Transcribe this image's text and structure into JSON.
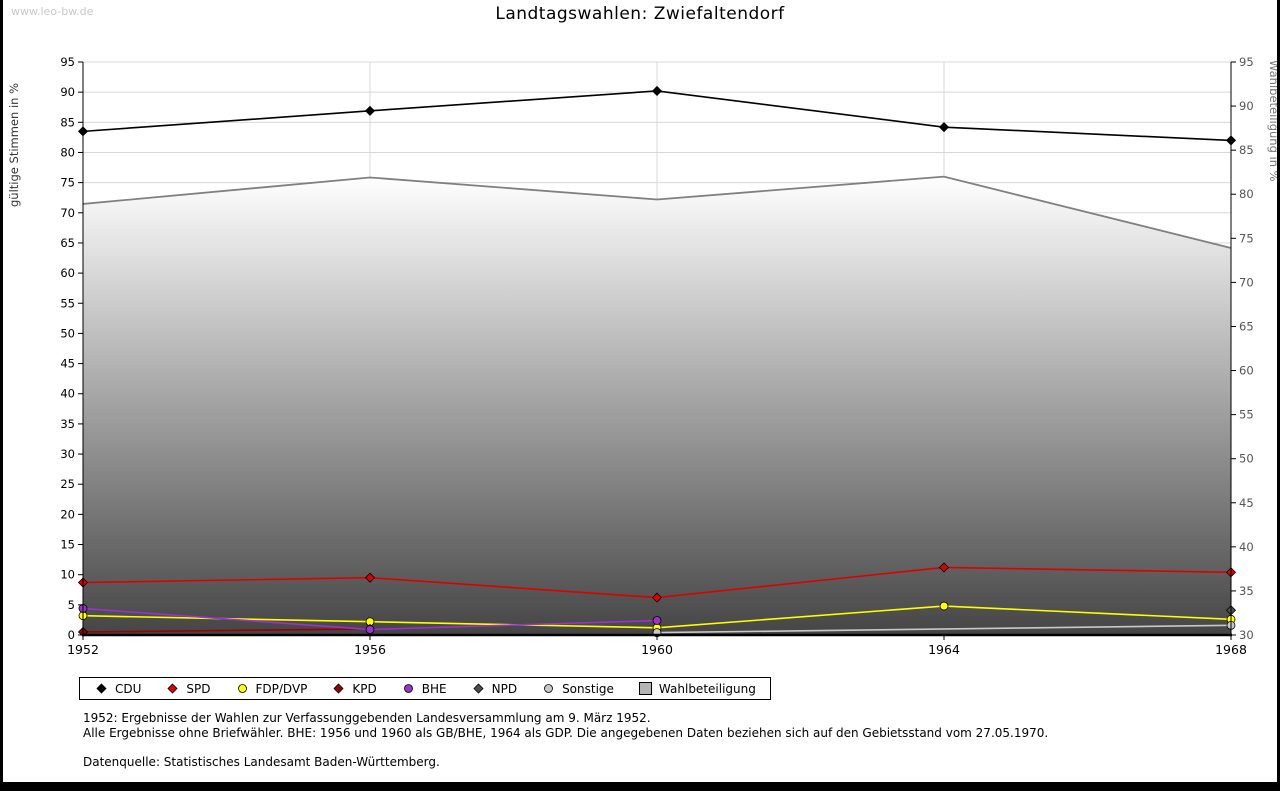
{
  "watermark": "www.leo-bw.de",
  "title": "Landtagswahlen: Zwiefaltendorf",
  "chart_data": {
    "type": "line",
    "x": [
      1952,
      1956,
      1960,
      1964,
      1968
    ],
    "left_axis": {
      "label": "gültige Stimmen in %",
      "min": 0,
      "max": 95,
      "tick_step": 5
    },
    "right_axis": {
      "label": "Wahlbeteiligung in %",
      "min": 30,
      "max": 95,
      "tick_step": 5
    },
    "grid": true,
    "legend_position": "bottom",
    "series": [
      {
        "name": "Wahlbeteiligung",
        "axis": "right",
        "type": "area",
        "color": "#808080",
        "marker": "square",
        "values": [
          78.9,
          81.9,
          79.4,
          82.0,
          73.9
        ]
      },
      {
        "name": "CDU",
        "axis": "left",
        "type": "line",
        "color": "#000000",
        "marker": "diamond",
        "values": [
          83.5,
          86.9,
          90.2,
          84.2,
          82.0
        ]
      },
      {
        "name": "SPD",
        "axis": "left",
        "type": "line",
        "color": "#dd0000",
        "marker": "diamond",
        "values": [
          8.7,
          9.5,
          6.2,
          11.2,
          10.4
        ]
      },
      {
        "name": "FDP/DVP",
        "axis": "left",
        "type": "line",
        "color": "#ffff00",
        "marker": "circle",
        "values": [
          3.2,
          2.2,
          1.2,
          4.8,
          2.6
        ]
      },
      {
        "name": "KPD",
        "axis": "left",
        "type": "line",
        "color": "#990000",
        "marker": "diamond",
        "values": [
          0.5,
          1.0,
          null,
          null,
          null
        ]
      },
      {
        "name": "BHE",
        "axis": "left",
        "type": "line",
        "color": "#9933cc",
        "marker": "circle",
        "values": [
          4.4,
          0.9,
          2.4,
          null,
          null
        ]
      },
      {
        "name": "NPD",
        "axis": "left",
        "type": "line",
        "color": "#4d4d4d",
        "marker": "diamond",
        "values": [
          null,
          null,
          null,
          null,
          4.1
        ]
      },
      {
        "name": "Sonstige",
        "axis": "left",
        "type": "line",
        "color": "#c8c8c8",
        "marker": "circle",
        "values": [
          null,
          null,
          0.4,
          null,
          1.6
        ]
      }
    ],
    "legend_order": [
      "CDU",
      "SPD",
      "FDP/DVP",
      "KPD",
      "BHE",
      "NPD",
      "Sonstige",
      "Wahlbeteiligung"
    ]
  },
  "footnotes": [
    "1952: Ergebnisse der Wahlen zur Verfassunggebenden Landesversammlung am 9. März 1952.",
    "Alle Ergebnisse ohne Briefwähler. BHE: 1956 und 1960 als GB/BHE, 1964 als GDP. Die angegebenen Daten beziehen sich auf den Gebietsstand vom 27.05.1970.",
    "Datenquelle: Statistisches Landesamt Baden-Württemberg."
  ]
}
